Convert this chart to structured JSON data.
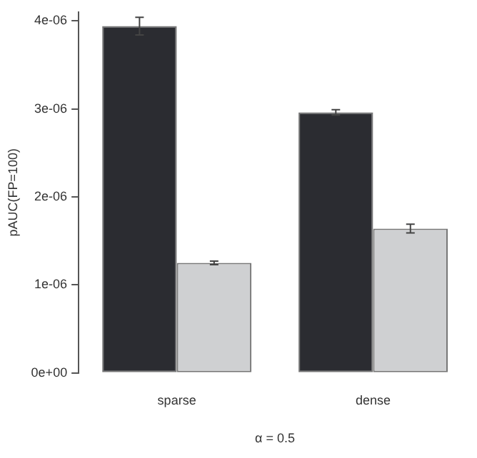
{
  "chart_data": {
    "type": "bar",
    "xlabel": "α = 0.5",
    "ylabel": "pAUC(FP=100)",
    "categories": [
      "sparse",
      "dense"
    ],
    "series": [
      {
        "color": "#2b2c31",
        "values": [
          3.94e-06,
          2.96e-06
        ],
        "errors": [
          1e-07,
          3e-08
        ]
      },
      {
        "color": "#cfd0d2",
        "values": [
          1.25e-06,
          1.64e-06
        ],
        "errors": [
          2e-08,
          5e-08
        ]
      }
    ],
    "ylim": [
      0,
      4.1e-06
    ],
    "yticks": [
      {
        "value": 0,
        "label": "0e+00"
      },
      {
        "value": 1e-06,
        "label": "1e-06"
      },
      {
        "value": 2e-06,
        "label": "2e-06"
      },
      {
        "value": 3e-06,
        "label": "3e-06"
      },
      {
        "value": 4e-06,
        "label": "4e-06"
      }
    ],
    "grid": false,
    "legend": false
  }
}
